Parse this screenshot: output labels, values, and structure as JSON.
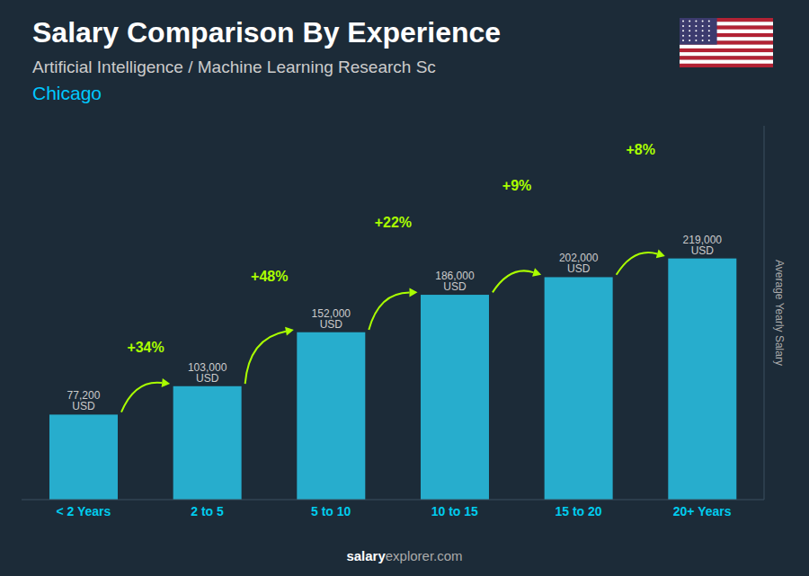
{
  "chart_data": {
    "type": "bar",
    "title": "Salary Comparison By Experience",
    "subtitle": [
      "Artificial Intelligence / Machine Learning Research Sc",
      "Chicago"
    ],
    "ylabel": "Average Yearly Salary",
    "categories": [
      "< 2 Years",
      "2 to 5",
      "5 to 10",
      "10 to 15",
      "15 to 20",
      "20+ Years"
    ],
    "values": [
      77200,
      103000,
      152000,
      186000,
      202000,
      219000
    ],
    "value_labels": [
      "77,200 USD",
      "103,000 USD",
      "152,000 USD",
      "186,000 USD",
      "202,000 USD",
      "219,000 USD"
    ],
    "data_labels": true,
    "color": "#29c4e8",
    "ylim": [
      0,
      339450
    ],
    "yticks": [],
    "tick_labels": "x",
    "grid": false,
    "annotations": {
      "changes": [
        "+34%",
        "+48%",
        "+22%",
        "+9%",
        "+8%"
      ],
      "color": "#aaff00",
      "watermark": [
        "salary",
        "explorer.com"
      ]
    }
  }
}
